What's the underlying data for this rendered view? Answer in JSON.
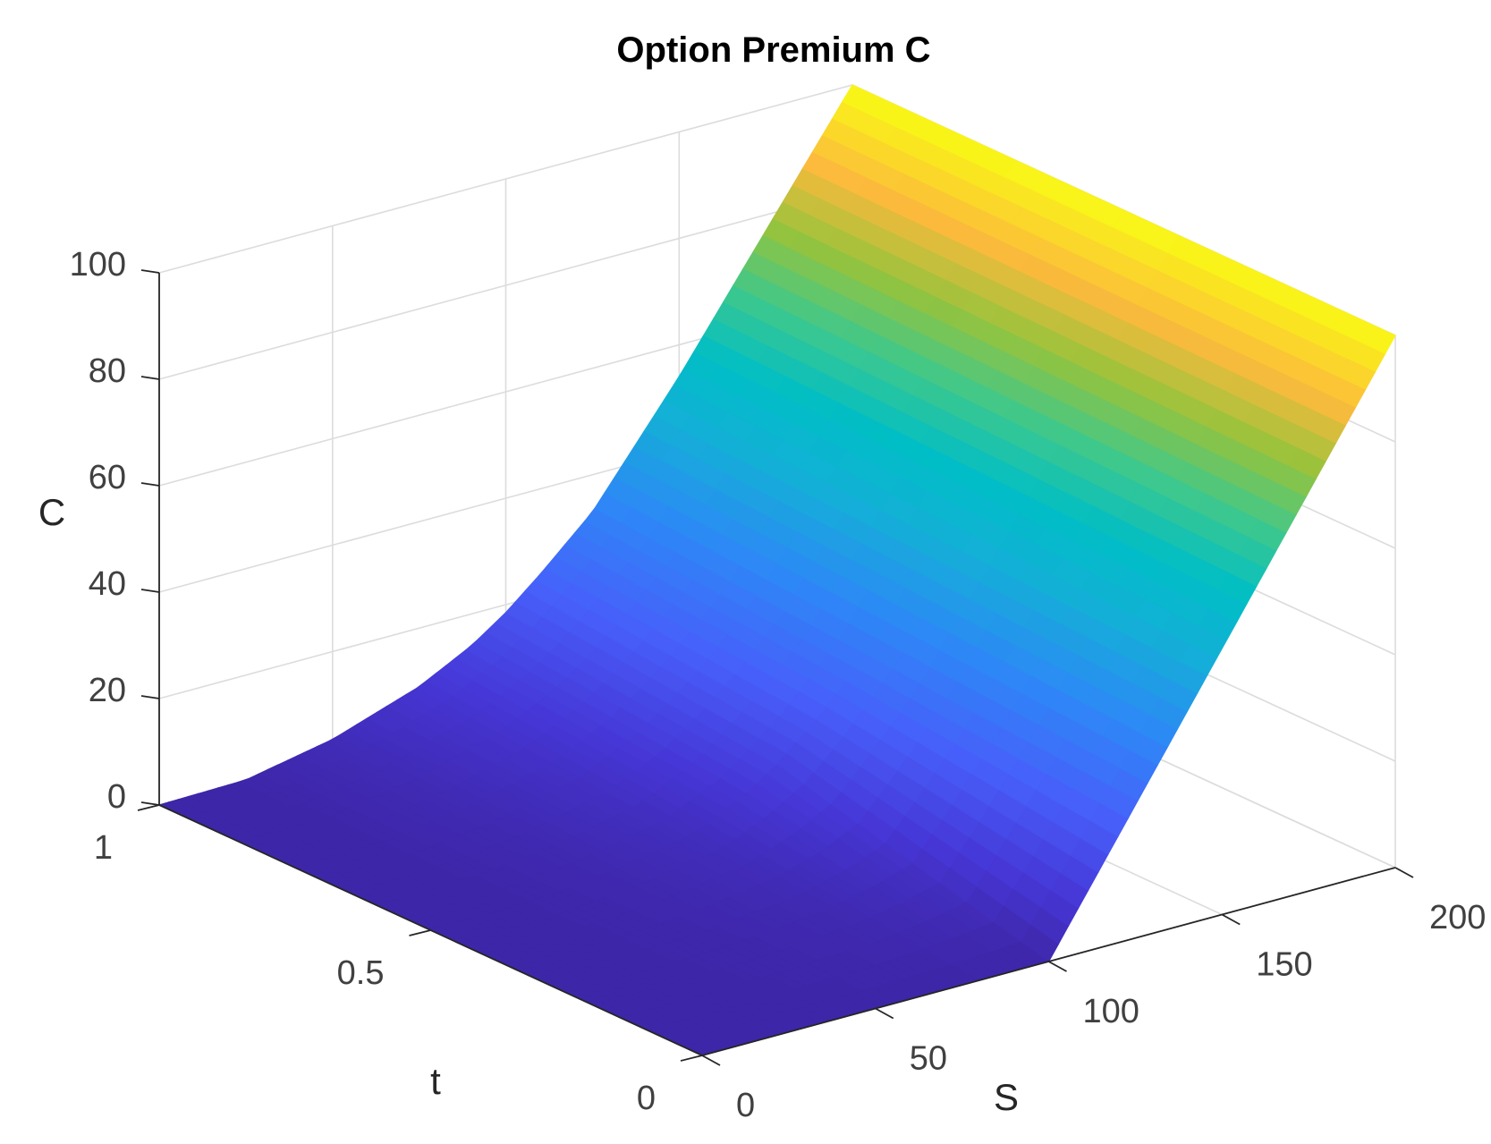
{
  "chart_data": {
    "type": "surface",
    "title": "Option Premium C",
    "xlabel": "S",
    "ylabel": "t",
    "zlabel": "C",
    "xlim": [
      0,
      200
    ],
    "ylim": [
      0,
      1
    ],
    "zlim": [
      0,
      100
    ],
    "x_ticks": [
      "0",
      "50",
      "100",
      "150",
      "200"
    ],
    "y_ticks": [
      "0",
      "0.5",
      "1"
    ],
    "z_ticks": [
      "0",
      "20",
      "40",
      "60",
      "80",
      "100"
    ],
    "colormap": "parula",
    "grid": true,
    "series": [
      {
        "t": 0,
        "S": [
          0,
          25,
          50,
          75,
          90,
          100,
          110,
          125,
          150,
          175,
          200
        ],
        "C": [
          0,
          0,
          0,
          0,
          0,
          0,
          10,
          25,
          50,
          75,
          100
        ]
      },
      {
        "t": 0.5,
        "S": [
          0,
          25,
          50,
          75,
          90,
          100,
          110,
          125,
          150,
          175,
          200
        ],
        "C": [
          0,
          0.1,
          1.5,
          4.5,
          9,
          13.5,
          19,
          29,
          52,
          76,
          100
        ]
      },
      {
        "t": 1,
        "S": [
          0,
          25,
          50,
          75,
          90,
          100,
          110,
          125,
          150,
          175,
          200
        ],
        "C": [
          0,
          0.3,
          3.5,
          9,
          14,
          18.5,
          24,
          33,
          54,
          77,
          100
        ]
      }
    ]
  }
}
